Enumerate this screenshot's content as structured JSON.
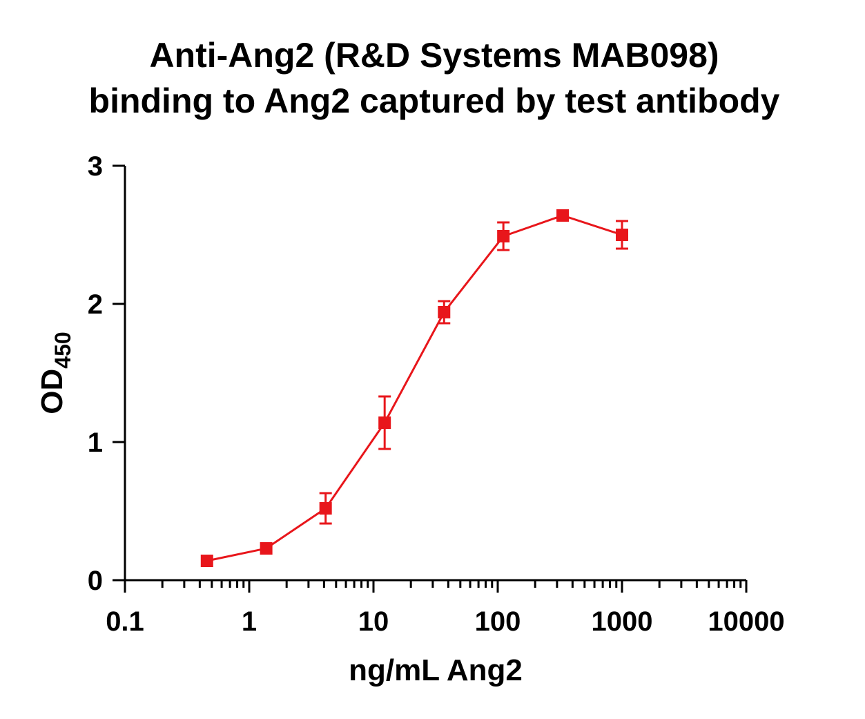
{
  "chart_data": {
    "type": "line",
    "title": [
      "Anti-Ang2 (R&D Systems MAB098)",
      "binding to Ang2 captured by test antibody"
    ],
    "xlabel": "ng/mL Ang2",
    "ylabel": {
      "main": "OD",
      "subscript": "450"
    },
    "x_scale": "log",
    "xlim": [
      0.1,
      10000
    ],
    "ylim": [
      0,
      3
    ],
    "x_ticks": [
      0.1,
      1,
      10,
      100,
      1000,
      10000
    ],
    "x_tick_labels": [
      "0.1",
      "1",
      "10",
      "100",
      "1000",
      "10000"
    ],
    "y_ticks": [
      0,
      1,
      2,
      3
    ],
    "y_tick_labels": [
      "0",
      "1",
      "2",
      "3"
    ],
    "grid": false,
    "series": [
      {
        "color": "#e8161b",
        "marker": "square",
        "x": [
          0.457,
          1.37,
          4.12,
          12.3,
          37.0,
          111,
          333,
          1000
        ],
        "y": [
          0.14,
          0.23,
          0.52,
          1.14,
          1.94,
          2.49,
          2.64,
          2.5
        ],
        "yerr": [
          0.0,
          0.0,
          0.11,
          0.19,
          0.08,
          0.1,
          0.0,
          0.1
        ]
      }
    ]
  }
}
